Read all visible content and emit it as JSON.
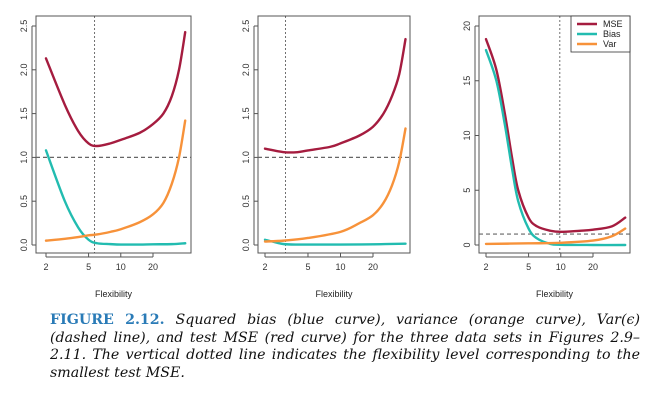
{
  "colors": {
    "MSE": "#a51c3f",
    "Bias": "#22bcb0",
    "Var": "#f7923a",
    "reference": "#555555"
  },
  "chart_data": [
    {
      "type": "line",
      "x_scale": "log",
      "xlabel": "Flexibility",
      "xticks": [
        2,
        5,
        10,
        20
      ],
      "yticks": [
        "0.0",
        "0.5",
        "1.0",
        "1.5",
        "2.0",
        "2.5"
      ],
      "ylim": [
        -0.05,
        2.6
      ],
      "hline": 1.0,
      "vline": 5.7,
      "series": [
        {
          "key": "MSE",
          "x": [
            2,
            3,
            4,
            5,
            6,
            8,
            10,
            15,
            20,
            25,
            30,
            35,
            40
          ],
          "y": [
            2.13,
            1.6,
            1.3,
            1.16,
            1.13,
            1.16,
            1.2,
            1.28,
            1.38,
            1.5,
            1.7,
            2.0,
            2.43
          ]
        },
        {
          "key": "Bias",
          "x": [
            2,
            3,
            4,
            5,
            6,
            8,
            10,
            15,
            20,
            30,
            40
          ],
          "y": [
            1.08,
            0.5,
            0.2,
            0.06,
            0.02,
            0.01,
            0.005,
            0.005,
            0.008,
            0.01,
            0.02
          ]
        },
        {
          "key": "Var",
          "x": [
            2,
            3,
            4,
            5,
            6,
            8,
            10,
            15,
            20,
            25,
            30,
            35,
            40
          ],
          "y": [
            0.05,
            0.07,
            0.09,
            0.11,
            0.12,
            0.15,
            0.18,
            0.26,
            0.35,
            0.48,
            0.7,
            1.0,
            1.42
          ]
        }
      ]
    },
    {
      "type": "line",
      "x_scale": "log",
      "xlabel": "Flexibility",
      "xticks": [
        2,
        5,
        10,
        20
      ],
      "yticks": [
        "0.0",
        "0.5",
        "1.0",
        "1.5",
        "2.0",
        "2.5"
      ],
      "ylim": [
        -0.05,
        2.6
      ],
      "hline": 1.0,
      "vline": 3.1,
      "series": [
        {
          "key": "MSE",
          "x": [
            2,
            3,
            4,
            5,
            8,
            10,
            15,
            20,
            25,
            30,
            35,
            40
          ],
          "y": [
            1.1,
            1.06,
            1.06,
            1.08,
            1.12,
            1.16,
            1.25,
            1.35,
            1.5,
            1.7,
            1.95,
            2.35
          ]
        },
        {
          "key": "Bias",
          "x": [
            2,
            2.5,
            3,
            4,
            6,
            10,
            20,
            40
          ],
          "y": [
            0.06,
            0.03,
            0.01,
            0.005,
            0.005,
            0.005,
            0.008,
            0.015
          ]
        },
        {
          "key": "Var",
          "x": [
            2,
            3,
            5,
            10,
            15,
            20,
            25,
            30,
            35,
            40
          ],
          "y": [
            0.04,
            0.05,
            0.08,
            0.15,
            0.25,
            0.34,
            0.48,
            0.68,
            0.95,
            1.33
          ]
        }
      ]
    },
    {
      "type": "line",
      "x_scale": "log",
      "xlabel": "Flexibility",
      "xticks": [
        2,
        5,
        10,
        20
      ],
      "yticks": [
        "0",
        "5",
        "10",
        "15",
        "20"
      ],
      "ylim": [
        -0.8,
        20.8
      ],
      "hline": 1.0,
      "vline": 9.8,
      "legend": {
        "placement": "top-right",
        "entries": [
          "MSE",
          "Bias",
          "Var"
        ]
      },
      "series": [
        {
          "key": "MSE",
          "x": [
            2,
            2.5,
            3,
            3.5,
            4,
            5,
            6,
            8,
            10,
            15,
            20,
            30,
            40
          ],
          "y": [
            18.8,
            16,
            12,
            8,
            5,
            2.5,
            1.7,
            1.3,
            1.2,
            1.3,
            1.4,
            1.7,
            2.5
          ]
        },
        {
          "key": "Bias",
          "x": [
            2,
            2.5,
            3,
            3.5,
            4,
            5,
            6,
            8,
            10,
            20,
            40
          ],
          "y": [
            17.8,
            15,
            11,
            7,
            4,
            1.5,
            0.6,
            0.1,
            0.02,
            0,
            0
          ]
        },
        {
          "key": "Var",
          "x": [
            2,
            5,
            10,
            20,
            30,
            40
          ],
          "y": [
            0.1,
            0.15,
            0.2,
            0.4,
            0.8,
            1.5
          ]
        }
      ]
    }
  ],
  "caption": {
    "label": "FIGURE 2.12.",
    "text": " Squared bias (blue curve), variance (orange curve), Var(ϵ) (dashed line), and test MSE (red curve) for the three data sets in Figures 2.9–2.11. The vertical dotted line indicates the flexibility level corresponding to the smallest test MSE."
  }
}
